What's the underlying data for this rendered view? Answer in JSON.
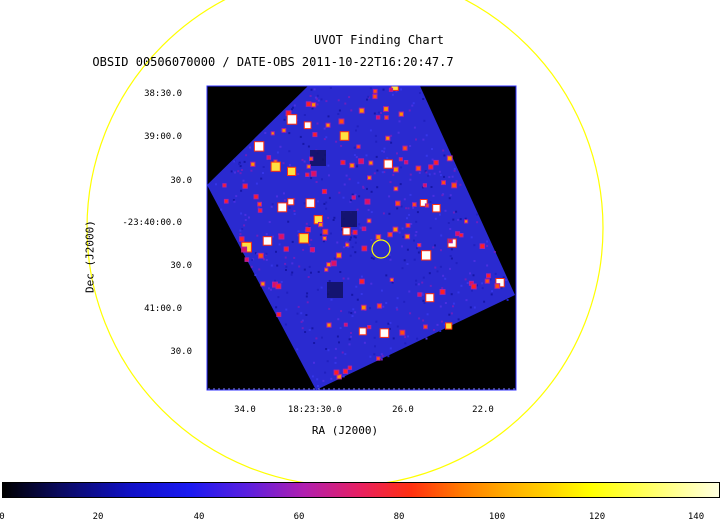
{
  "header": {
    "title": "UVOT Finding Chart",
    "subtitle": "OBSID 00506070000 / DATE-OBS 2011-10-22T16:20:47.7"
  },
  "axes": {
    "ra_label": "RA (J2000)",
    "dec_label": "Dec (J2000)",
    "ra_ticks": [
      "34.0",
      "18:23:30.0",
      "26.0",
      "22.0"
    ],
    "dec_ticks": [
      "38:30.0",
      "39:00.0",
      "30.0",
      "-23:40:00.0",
      "30.0",
      "41:00.0",
      "30.0"
    ]
  },
  "colorbar": {
    "ticks": [
      "0",
      "20",
      "40",
      "60",
      "80",
      "100",
      "120",
      "140"
    ]
  },
  "colors": {
    "sky_background": "#2a2ad0",
    "frame_background": "#000000",
    "circle": "#ffff00",
    "frame_border": "#3030ff"
  }
}
